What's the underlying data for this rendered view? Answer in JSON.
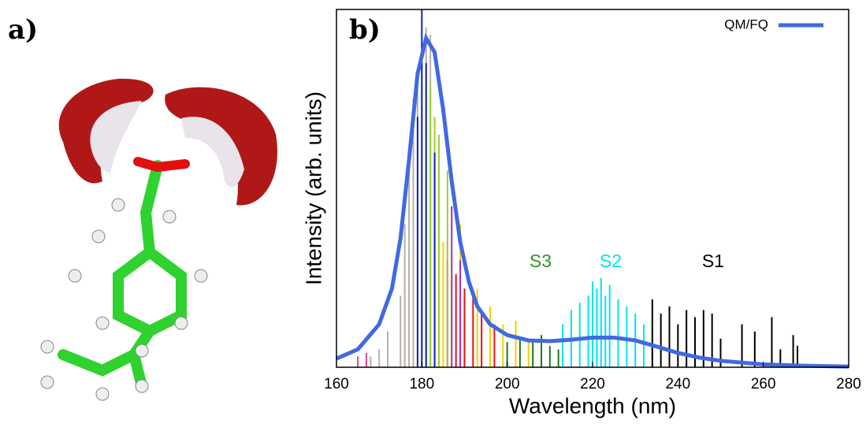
{
  "panel_labels": [
    "a)",
    "b)"
  ],
  "chart_data": {
    "type": "line",
    "xlabel": "Wavelength (nm)",
    "ylabel": "Intensity (arb. units)",
    "xlim": [
      160,
      280
    ],
    "ylim": [
      0,
      1
    ],
    "xticks": [
      160,
      180,
      200,
      220,
      240,
      260,
      280
    ],
    "legend": "upper right",
    "series": [
      {
        "name": "QM/FQ",
        "color": "#4169e1",
        "x": [
          160,
          165,
          170,
          173,
          175,
          177,
          179,
          181,
          183,
          185,
          187,
          189,
          191,
          193,
          196,
          200,
          205,
          210,
          215,
          220,
          225,
          230,
          235,
          240,
          245,
          250,
          260,
          270,
          280
        ],
        "values": [
          0.024,
          0.05,
          0.12,
          0.22,
          0.36,
          0.58,
          0.82,
          0.92,
          0.88,
          0.72,
          0.52,
          0.35,
          0.24,
          0.17,
          0.12,
          0.09,
          0.075,
          0.073,
          0.077,
          0.083,
          0.083,
          0.075,
          0.058,
          0.04,
          0.027,
          0.018,
          0.008,
          0.004,
          0.002
        ]
      }
    ],
    "sticks": [
      {
        "color": "#b8b0a8",
        "x": [
          168,
          170,
          172,
          175,
          176,
          177,
          178,
          179,
          181,
          182
        ],
        "values": [
          0.03,
          0.05,
          0.1,
          0.2,
          0.4,
          0.55,
          0.75,
          0.8,
          0.95,
          0.93
        ]
      },
      {
        "color": "#e0409a",
        "x": [
          165,
          167
        ],
        "values": [
          0.03,
          0.04
        ]
      },
      {
        "color": "#f5d000",
        "x": [
          185,
          189,
          193,
          196,
          199,
          202,
          205
        ],
        "values": [
          0.35,
          0.4,
          0.22,
          0.17,
          0.12,
          0.13,
          0.08
        ]
      },
      {
        "color": "#e81010",
        "x": [
          186,
          188,
          190,
          192,
          194,
          197
        ],
        "values": [
          0.3,
          0.26,
          0.22,
          0.2,
          0.15,
          0.12
        ]
      },
      {
        "color": "#9acd32",
        "x": [
          180,
          182,
          183,
          184,
          186
        ],
        "values": [
          0.9,
          0.8,
          0.7,
          0.65,
          0.55
        ]
      },
      {
        "color": "#9a30c0",
        "x": [
          187,
          189
        ],
        "values": [
          0.45,
          0.3
        ]
      },
      {
        "color": "#1020c0",
        "x": [
          179,
          180,
          181,
          183
        ],
        "values": [
          0.7,
          1,
          0.85,
          0.6
        ]
      },
      {
        "color": "#1f7a1f",
        "x": [
          200,
          203,
          206,
          208,
          210,
          212
        ],
        "values": [
          0.07,
          0.08,
          0.07,
          0.09,
          0.06,
          0.05
        ]
      },
      {
        "color": "#00e5ee",
        "x": [
          213,
          215,
          217,
          219,
          220,
          221,
          222,
          223,
          224,
          226,
          228,
          230,
          232,
          234
        ],
        "values": [
          0.12,
          0.16,
          0.18,
          0.2,
          0.24,
          0.22,
          0.25,
          0.2,
          0.23,
          0.19,
          0.17,
          0.15,
          0.12,
          0.08
        ]
      },
      {
        "color": "#000000",
        "x": [
          234,
          236,
          238,
          240,
          242,
          244,
          246,
          248,
          250,
          255,
          258,
          262,
          264,
          267,
          268
        ],
        "values": [
          0.19,
          0.15,
          0.17,
          0.12,
          0.16,
          0.14,
          0.16,
          0.15,
          0.08,
          0.12,
          0.1,
          0.14,
          0.05,
          0.09,
          0.06
        ]
      }
    ],
    "annotations": [
      {
        "text": "S3",
        "color": "#2a9a1e"
      },
      {
        "text": "S2",
        "color": "#00e5ee"
      },
      {
        "text": "S1",
        "color": "#000000"
      }
    ]
  }
}
